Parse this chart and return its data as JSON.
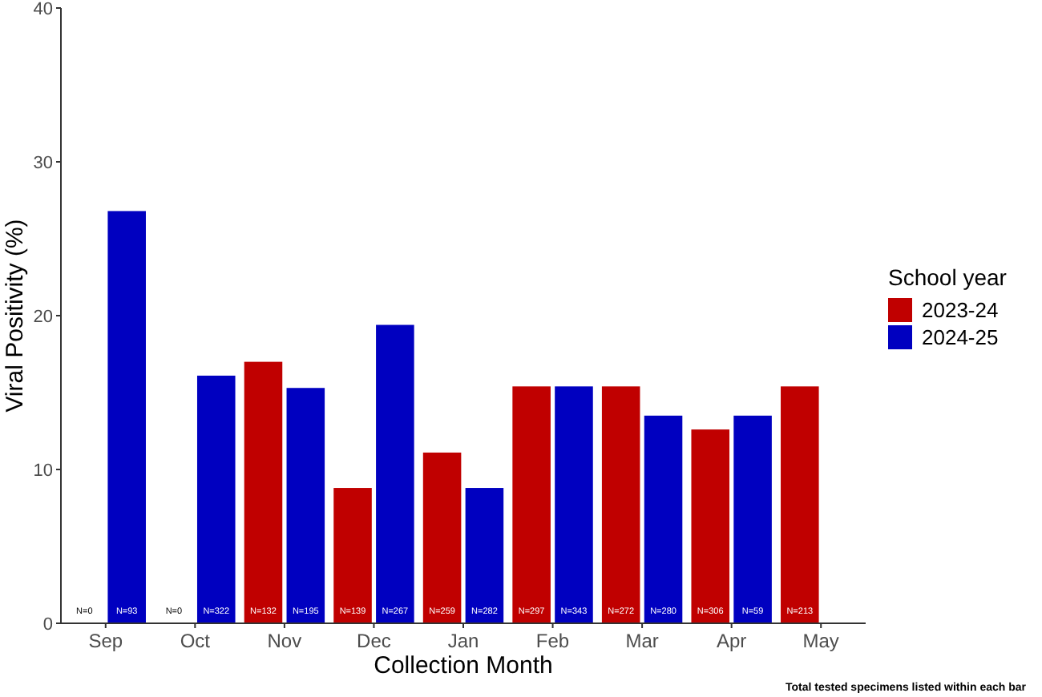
{
  "chart_data": {
    "type": "bar",
    "xlabel": "Collection Month",
    "ylabel": "Viral Positivity (%)",
    "legend_title": "School year",
    "legend": "right",
    "categories": [
      "Sep",
      "Oct",
      "Nov",
      "Dec",
      "Jan",
      "Feb",
      "Mar",
      "Apr",
      "May"
    ],
    "series": [
      {
        "name": "2023-24",
        "color": "#c00000",
        "values": [
          0,
          0,
          17.0,
          8.8,
          11.1,
          15.4,
          15.4,
          12.6,
          15.4
        ]
      },
      {
        "name": "2024-25",
        "color": "#0000c0",
        "values": [
          26.8,
          16.1,
          15.3,
          19.4,
          8.8,
          15.4,
          13.5,
          13.5,
          null
        ]
      }
    ],
    "ylim": [
      0,
      40
    ],
    "yticks": [
      0,
      10,
      20,
      30,
      40
    ],
    "grid": false,
    "annotations": [
      {
        "text": "N=0",
        "x": "Sep",
        "y": 0.8
      },
      {
        "text": "N=93",
        "x": "Sep",
        "y": 0.8
      },
      {
        "text": "N=0",
        "x": "Oct",
        "y": 0.8
      },
      {
        "text": "N=322",
        "x": "Oct",
        "y": 0.8
      },
      {
        "text": "N=132",
        "x": "Nov",
        "y": 0.8
      },
      {
        "text": "N=195",
        "x": "Nov",
        "y": 0.8
      },
      {
        "text": "N=139",
        "x": "Dec",
        "y": 0.8
      },
      {
        "text": "N=267",
        "x": "Dec",
        "y": 0.8
      },
      {
        "text": "N=259",
        "x": "Jan",
        "y": 0.8
      },
      {
        "text": "N=282",
        "x": "Jan",
        "y": 0.8
      },
      {
        "text": "N=297",
        "x": "Feb",
        "y": 0.8
      },
      {
        "text": "N=343",
        "x": "Feb",
        "y": 0.8
      },
      {
        "text": "N=272",
        "x": "Mar",
        "y": 0.8
      },
      {
        "text": "N=280",
        "x": "Mar",
        "y": 0.8
      },
      {
        "text": "N=306",
        "x": "Apr",
        "y": 0.8
      },
      {
        "text": "N=59",
        "x": "Apr",
        "y": 0.8
      },
      {
        "text": "N=213",
        "x": "May",
        "y": 0.8
      },
      "Total tested specimens listed within each bar"
    ]
  }
}
